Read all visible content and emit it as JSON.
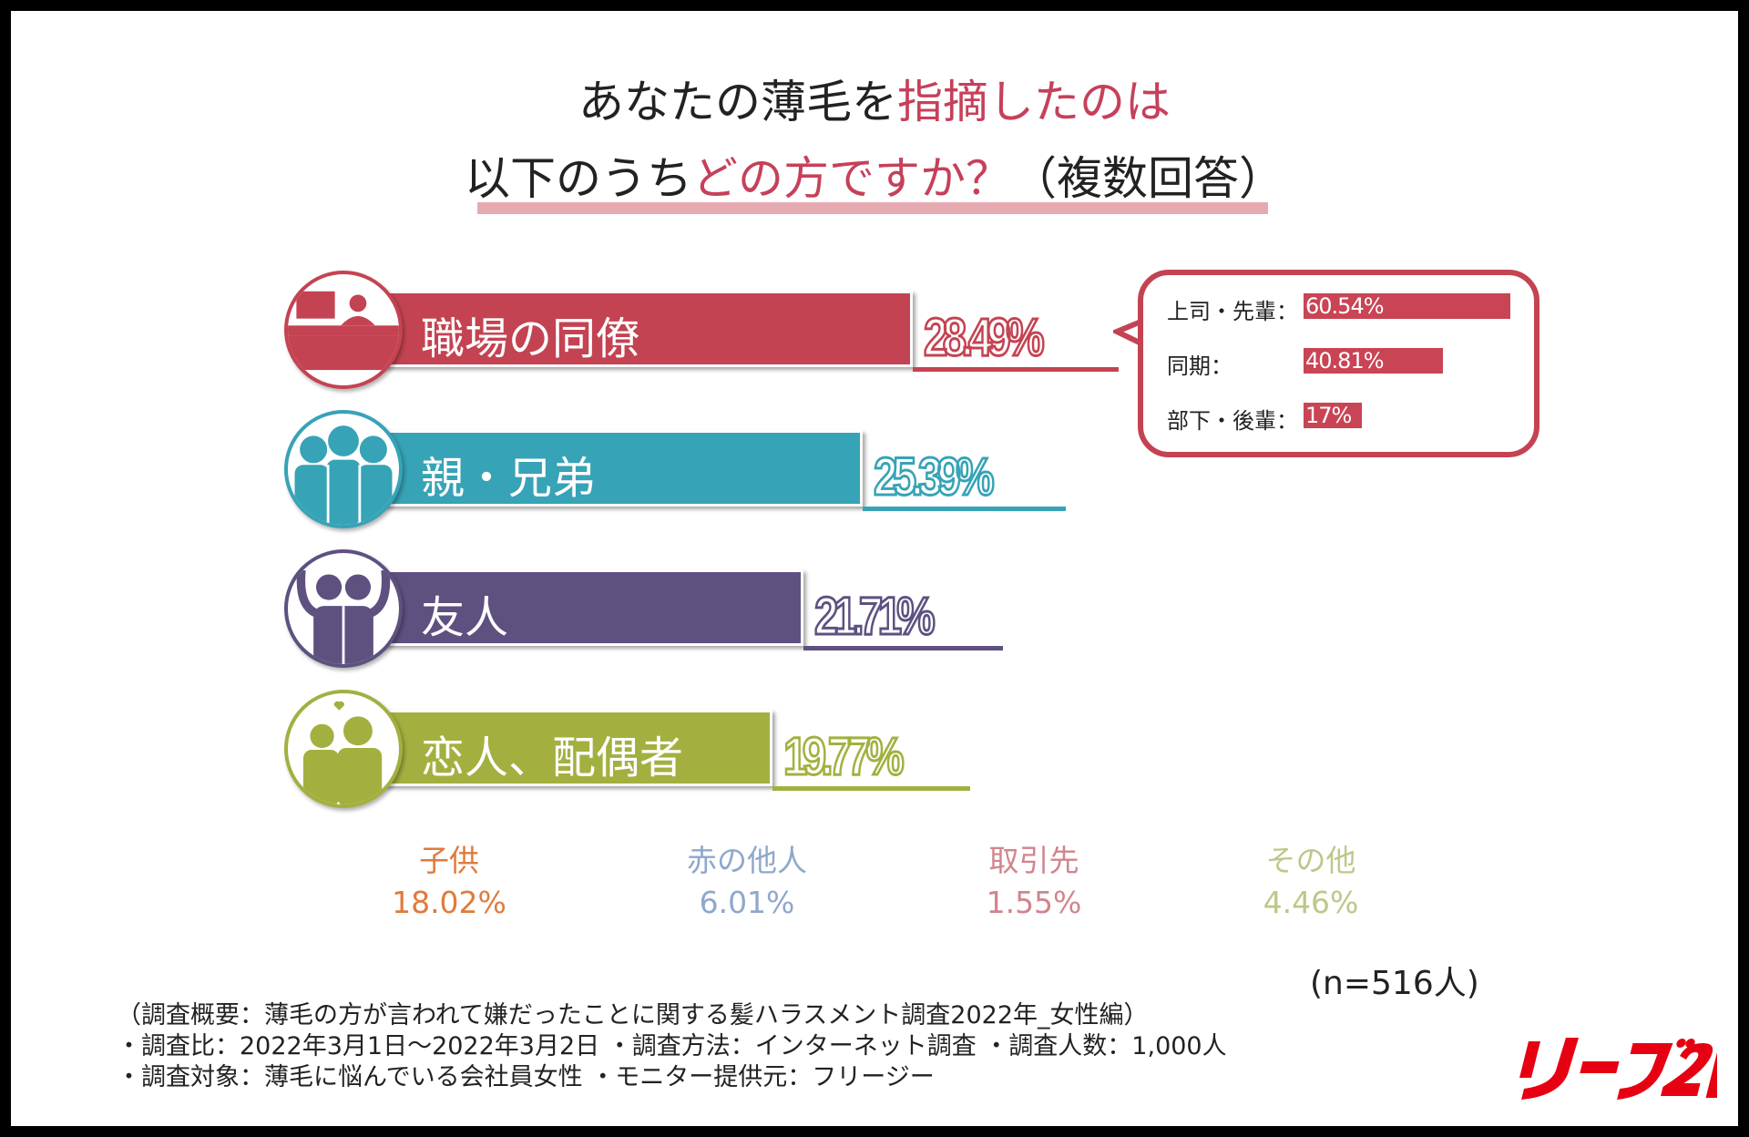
{
  "title": {
    "line1_a": "あなたの薄毛を",
    "line1_b": "指摘したのは",
    "line2_a": "以下のうち",
    "line2_b": "どの方ですか？",
    "line2_c": "（複数回答）"
  },
  "chart_data": {
    "type": "bar",
    "orientation": "horizontal",
    "categories": [
      "職場の同僚",
      "親・兄弟",
      "友人",
      "恋人、配偶者"
    ],
    "values": [
      28.49,
      25.39,
      21.71,
      19.77
    ],
    "value_labels": [
      "28.49%",
      "25.39%",
      "21.71%",
      "19.77%"
    ],
    "colors": [
      "#c44352",
      "#37a3b6",
      "#5e5180",
      "#a3b040"
    ],
    "icons": [
      "workplace-icon",
      "family-icon",
      "friends-icon",
      "couple-icon"
    ],
    "breakdown": {
      "parent": "職場の同僚",
      "items": [
        {
          "label": "上司・先輩：",
          "value": 60.54,
          "text": "60.54%"
        },
        {
          "label": "同期：",
          "value": 40.81,
          "text": "40.81%"
        },
        {
          "label": "部下・後輩：",
          "value": 17,
          "text": "17%"
        }
      ]
    },
    "others": [
      {
        "label": "子供",
        "value": "18.02%",
        "color": "#e07b3a"
      },
      {
        "label": "赤の他人",
        "value": "6.01%",
        "color": "#8ea8cc"
      },
      {
        "label": "取引先",
        "value": "1.55%",
        "color": "#d0858d"
      },
      {
        "label": "その他",
        "value": "4.46%",
        "color": "#bcc889"
      }
    ],
    "sample": "(n=516人)"
  },
  "notes": [
    "（調査概要：薄毛の方が言われて嫌だったことに関する髪ハラスメント調査2022年_女性編）",
    "・調査比：2022年3月1日～2022年3月2日 ・調査方法：インターネット調査 ・調査人数：1,000人",
    "・調査対象：薄毛に悩んでいる会社員女性 ・モニター提供元：フリージー"
  ],
  "logo": {
    "text": "リーブ21",
    "color": "#e60012"
  }
}
